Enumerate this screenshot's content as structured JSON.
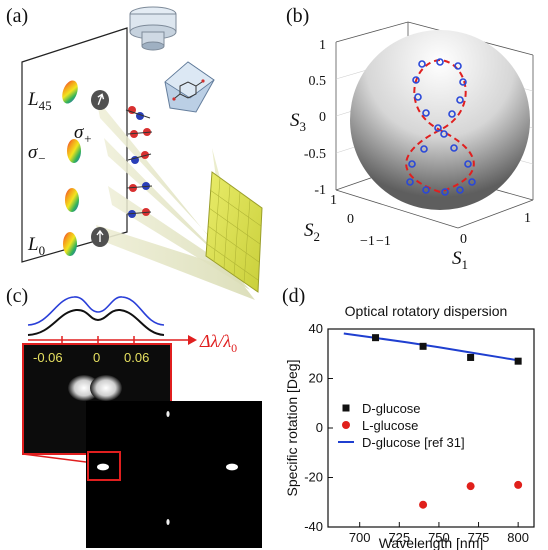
{
  "panels": {
    "a": {
      "label": "(a)",
      "L45": "L",
      "L45_sub": "45",
      "sigma_plus": "σ",
      "sigma_plus_sub": "+",
      "sigma_minus": "σ",
      "sigma_minus_sub": "−",
      "L0": "L",
      "L0_sub": "0"
    },
    "b": {
      "label": "(b)",
      "axis_s1": "S",
      "axis_s1_sub": "1",
      "axis_s2": "S",
      "axis_s2_sub": "2",
      "axis_s3": "S",
      "axis_s3_sub": "3",
      "s3_ticks": [
        "1",
        "0.5",
        "0",
        "-0.5",
        "-1"
      ],
      "s2_ticks": [
        "1",
        "0",
        "−1"
      ],
      "s1_ticks": [
        "−1",
        "0",
        "1"
      ]
    },
    "c": {
      "label": "(c)",
      "tick_labels": [
        "-0.06",
        "0",
        "0.06"
      ],
      "delta_label": "Δλ/λ",
      "delta_sub": "0"
    },
    "d": {
      "label": "(d)"
    }
  },
  "chart_data": {
    "type": "scatter",
    "title": "Optical rotatory dispersion",
    "xlabel": "Wavelength [nm]",
    "ylabel": "Specific rotation [Deg]",
    "xlim": [
      680,
      810
    ],
    "ylim": [
      -40,
      40
    ],
    "xticks": [
      700,
      725,
      750,
      775,
      800
    ],
    "yticks": [
      -40,
      -20,
      0,
      20,
      40
    ],
    "grid": false,
    "legend_position": "center",
    "series": [
      {
        "name": "D-glucose",
        "kind": "marker",
        "marker": "square",
        "color": "#111111",
        "x": [
          710,
          740,
          770,
          800
        ],
        "y": [
          36.5,
          33,
          28.5,
          27
        ]
      },
      {
        "name": "L-glucose",
        "kind": "marker",
        "marker": "circle",
        "color": "#e0201b",
        "x": [
          740,
          770,
          800
        ],
        "y": [
          -31,
          -23.5,
          -23
        ]
      },
      {
        "name": "D-glucose [ref 31]",
        "kind": "line",
        "color": "#1f3fd0",
        "x": [
          690,
          710,
          730,
          750,
          770,
          790,
          800
        ],
        "y": [
          38.2,
          36.4,
          34.6,
          32.6,
          30.5,
          28.4,
          27.3
        ]
      }
    ]
  }
}
